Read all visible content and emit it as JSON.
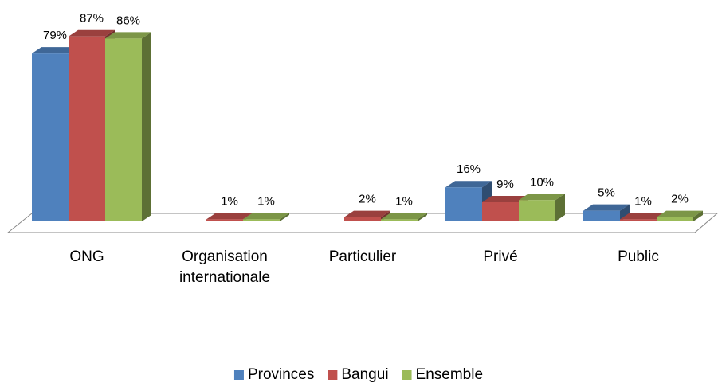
{
  "chart_data": {
    "type": "bar3d",
    "categories": [
      "ONG",
      "Organisation internationale",
      "Particulier",
      "Privé",
      "Public"
    ],
    "series": [
      {
        "name": "Provinces",
        "color": "#4f81bd",
        "values": [
          79,
          null,
          null,
          16,
          5
        ],
        "value_labels": [
          "79%",
          null,
          null,
          "16%",
          "5%"
        ]
      },
      {
        "name": "Bangui",
        "color": "#c0504d",
        "values": [
          87,
          1,
          2,
          9,
          1
        ],
        "value_labels": [
          "87%",
          "1%",
          "2%",
          "9%",
          "1%"
        ]
      },
      {
        "name": "Ensemble",
        "color": "#9bbb59",
        "values": [
          86,
          1,
          1,
          10,
          2
        ],
        "value_labels": [
          "86%",
          "1%",
          "1%",
          "10%",
          "2%"
        ]
      }
    ],
    "legend": "bottom"
  }
}
